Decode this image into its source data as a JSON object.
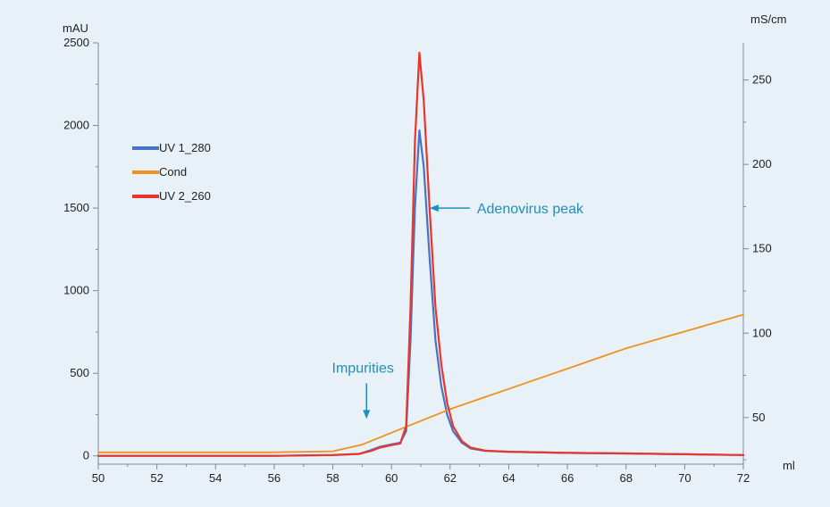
{
  "chart_data": {
    "type": "line",
    "xlabel": "ml",
    "ylabel": "mAU",
    "y2label": "mS/cm",
    "xlim": [
      50,
      72
    ],
    "ylim": [
      -50,
      2500
    ],
    "y2lim": [
      22.4,
      272
    ],
    "x_ticks": [
      50,
      52,
      54,
      56,
      58,
      60,
      62,
      64,
      66,
      68,
      70,
      72
    ],
    "y_ticks": [
      0,
      500,
      1000,
      1500,
      2000,
      2500
    ],
    "y2_ticks": [
      50,
      100,
      150,
      200,
      250
    ],
    "grid": false,
    "legend_position": "upper-left",
    "colors": {
      "background": "#e8f1f7",
      "annotation": "#1f8fbf"
    },
    "series": [
      {
        "name": "UV 1_280",
        "axis": "left",
        "color": "#4a72c4",
        "x": [
          50,
          56,
          58,
          58.9,
          59.3,
          59.6,
          60,
          60.3,
          60.5,
          60.65,
          60.8,
          60.95,
          61.1,
          61.3,
          61.5,
          61.7,
          61.9,
          62.1,
          62.4,
          62.7,
          63.2,
          64,
          66,
          68,
          70,
          72
        ],
        "y": [
          0,
          0,
          5,
          12,
          35,
          55,
          70,
          80,
          150,
          700,
          1500,
          1970,
          1750,
          1200,
          700,
          420,
          250,
          150,
          80,
          45,
          30,
          25,
          18,
          15,
          10,
          5
        ]
      },
      {
        "name": "Cond",
        "axis": "right",
        "color": "#f0901e",
        "x": [
          50,
          55.8,
          58,
          59,
          60,
          61,
          62,
          63,
          64,
          65,
          66,
          67,
          68,
          69,
          70,
          71,
          72
        ],
        "y": [
          29.4,
          29.4,
          30,
          34,
          41,
          48,
          55,
          61,
          67,
          73,
          79,
          85,
          91,
          96,
          101,
          106,
          111
        ]
      },
      {
        "name": "UV 2_260",
        "axis": "left",
        "color": "#e8362e",
        "x": [
          50,
          56,
          58,
          58.9,
          59.3,
          59.6,
          60,
          60.3,
          60.5,
          60.65,
          60.8,
          60.95,
          61.1,
          61.3,
          61.5,
          61.7,
          61.9,
          62.1,
          62.4,
          62.7,
          63.2,
          64,
          66,
          68,
          70,
          72
        ],
        "y": [
          0,
          0,
          5,
          12,
          30,
          50,
          65,
          75,
          180,
          900,
          1900,
          2440,
          2150,
          1500,
          900,
          550,
          320,
          180,
          90,
          50,
          32,
          25,
          18,
          15,
          10,
          5
        ]
      }
    ],
    "annotations": [
      {
        "text": "Adenovirus peak",
        "arrow_to": {
          "x": 61.3,
          "y": 1500
        }
      },
      {
        "text": "Impurities",
        "arrow_to": {
          "x": 59.3,
          "y": 180
        }
      }
    ]
  }
}
